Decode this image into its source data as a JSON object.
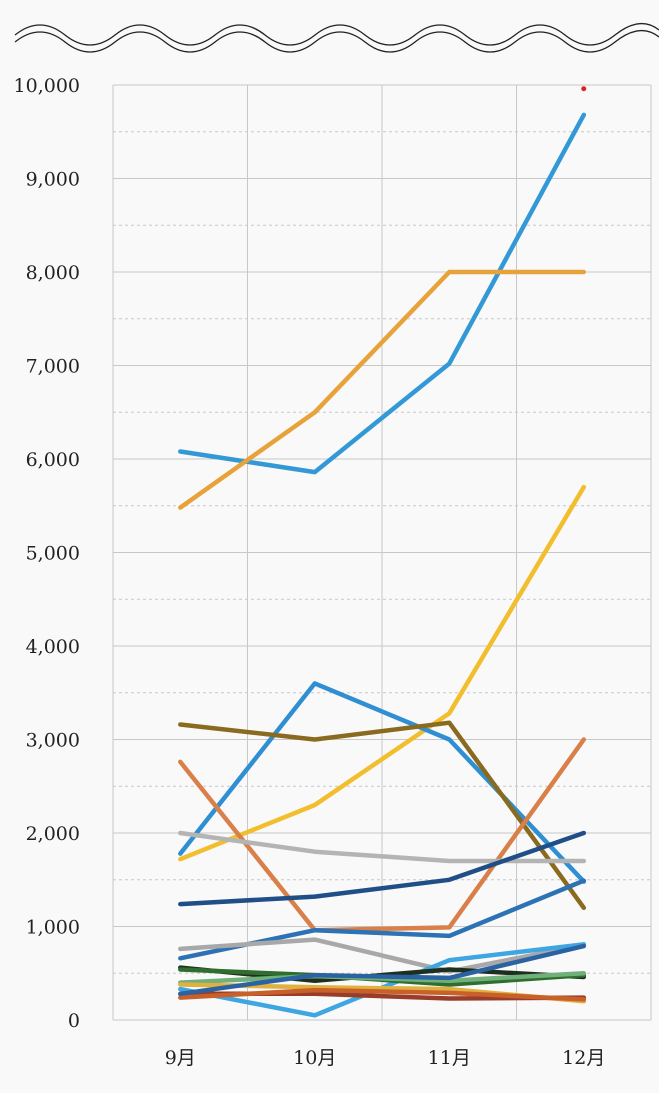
{
  "chart_data": {
    "type": "line",
    "categories": [
      "9月",
      "10月",
      "11月",
      "12月"
    ],
    "ylim": [
      0,
      10000
    ],
    "yticks": [
      0,
      1000,
      2000,
      3000,
      4000,
      5000,
      6000,
      7000,
      8000,
      9000,
      10000
    ],
    "ytick_labels": [
      "0",
      "1,000",
      "2,000",
      "3,000",
      "4,000",
      "5,000",
      "6,000",
      "7,000",
      "8,000",
      "9,000",
      "10,000"
    ],
    "grid": true,
    "legend": "none",
    "series": [
      {
        "color": "#3399d6",
        "values": [
          6080,
          5860,
          7020,
          9680
        ]
      },
      {
        "color": "#e8a23a",
        "values": [
          5480,
          6500,
          8000,
          8000
        ]
      },
      {
        "color": "#f2be2e",
        "values": [
          1720,
          2300,
          3280,
          5700
        ]
      },
      {
        "color": "#2f8fd2",
        "values": [
          1780,
          3600,
          3000,
          1480
        ]
      },
      {
        "color": "#8a6a1f",
        "values": [
          3160,
          3000,
          3180,
          1200
        ]
      },
      {
        "color": "#d9804a",
        "values": [
          2760,
          960,
          990,
          3000
        ]
      },
      {
        "color": "#b4b4b4",
        "values": [
          2000,
          1800,
          1700,
          1700
        ]
      },
      {
        "color": "#1f4f86",
        "values": [
          1240,
          1320,
          1500,
          2000
        ]
      },
      {
        "color": "#2c72b5",
        "values": [
          660,
          960,
          900,
          1490
        ]
      },
      {
        "color": "#a8a8a8",
        "values": [
          760,
          860,
          520,
          800
        ]
      },
      {
        "color": "#3ea6e0",
        "values": [
          330,
          50,
          640,
          810
        ]
      },
      {
        "color": "#1f2f1f",
        "values": [
          560,
          420,
          540,
          460
        ]
      },
      {
        "color": "#2f6e2f",
        "values": [
          540,
          480,
          380,
          480
        ]
      },
      {
        "color": "#70b07a",
        "values": [
          400,
          470,
          420,
          500
        ]
      },
      {
        "color": "#e0b040",
        "values": [
          380,
          350,
          330,
          200
        ]
      },
      {
        "color": "#9a3c2a",
        "values": [
          280,
          280,
          230,
          240
        ]
      },
      {
        "color": "#c8602a",
        "values": [
          240,
          320,
          290,
          220
        ]
      },
      {
        "color": "#2a62a2",
        "values": [
          280,
          480,
          450,
          790
        ]
      }
    ],
    "markers": [
      {
        "color": "#dd2222",
        "category": "12月",
        "value": 9960
      }
    ]
  }
}
